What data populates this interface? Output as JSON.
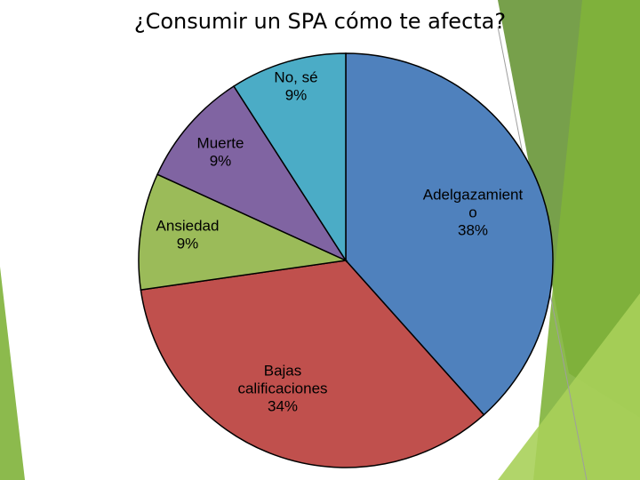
{
  "slide": {
    "title": "¿Consumir un SPA cómo te afecta?"
  },
  "colors": {
    "background": "#ffffff",
    "accent_green_dark": "#5f8f2c",
    "accent_green_mid": "#7fb23a",
    "accent_green_light": "#a9d05a"
  },
  "chart_data": {
    "type": "pie",
    "title": "¿Consumir un SPA cómo te afecta?",
    "slices": [
      {
        "label": "Adelgazamiento",
        "label_lines": [
          "Adelgazamient",
          "o",
          "38%"
        ],
        "value": 38,
        "color": "#4f81bd"
      },
      {
        "label": "Bajas calificaciones",
        "label_lines": [
          "Bajas",
          "calificaciones",
          "34%"
        ],
        "value": 34,
        "color": "#c0504d"
      },
      {
        "label": "Ansiedad",
        "label_lines": [
          "Ansiedad",
          "9%"
        ],
        "value": 9,
        "color": "#9bbb59"
      },
      {
        "label": "Muerte",
        "label_lines": [
          "Muerte",
          "9%"
        ],
        "value": 9,
        "color": "#8064a2"
      },
      {
        "label": "No, sé",
        "label_lines": [
          "No, sé",
          "9%"
        ],
        "value": 9,
        "color": "#4bacc6"
      }
    ],
    "start_angle_deg": 0,
    "direction": "clockwise",
    "legend": "none"
  }
}
